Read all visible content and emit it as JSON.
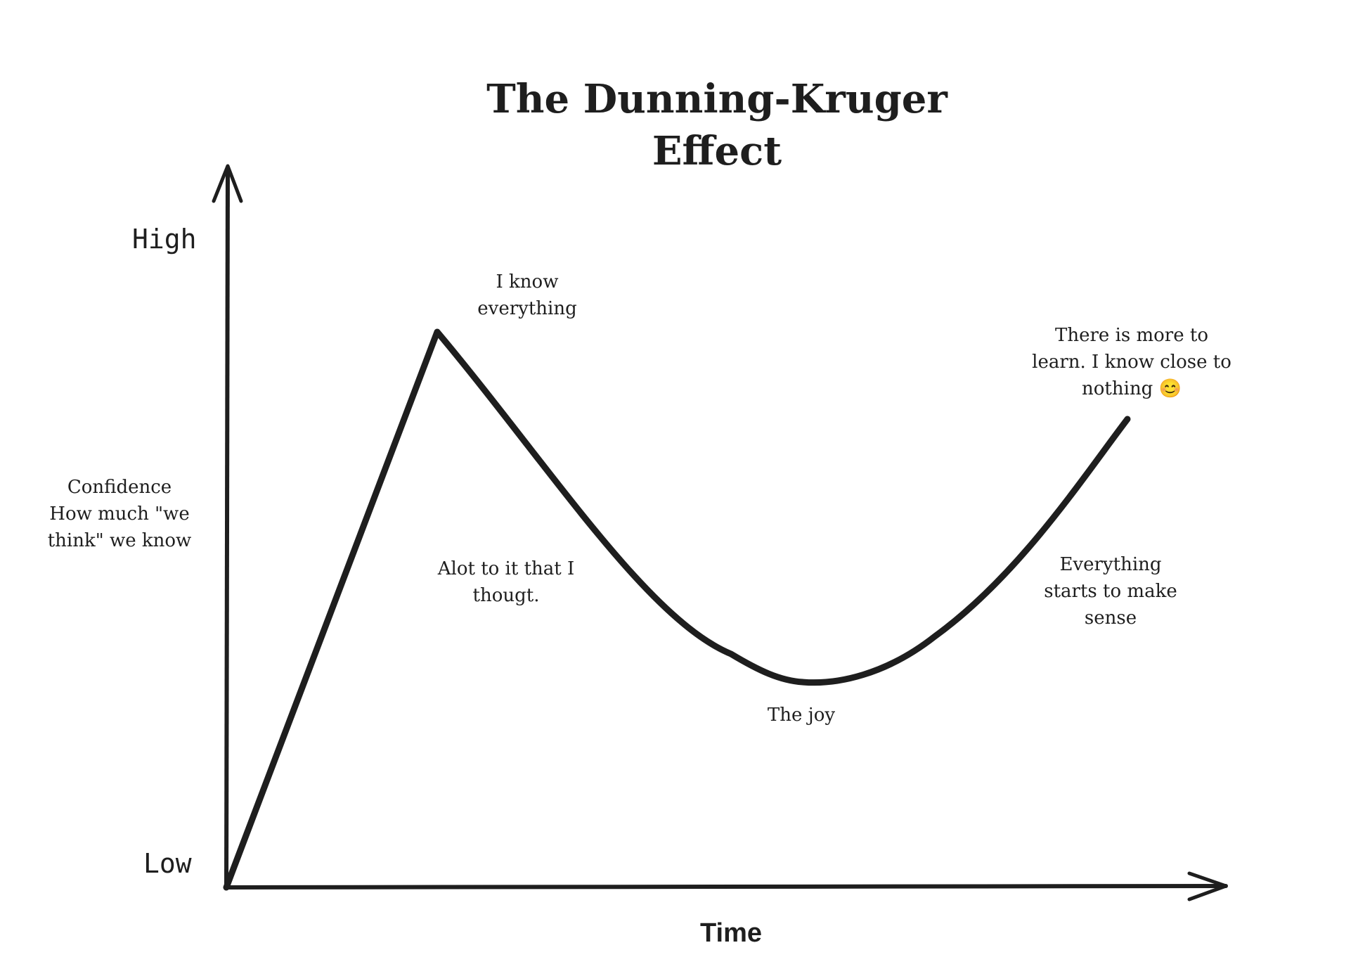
{
  "title": "The Dunning-Kruger\nEffect",
  "axes": {
    "y_high": "High",
    "y_low": "Low",
    "y_label": "Confidence\nHow much \"we\nthink\" we know",
    "x_label": "Time"
  },
  "annotations": {
    "peak": "I know\neverything",
    "descent": "Alot to it that I\nthougt.",
    "valley": "The joy",
    "ascent": "Everything\nstarts to make\nsense",
    "plateau": "There is more to\nlearn. I know close to\nnothing 😊"
  },
  "colors": {
    "ink": "#1e1e1e",
    "background": "#ffffff"
  }
}
